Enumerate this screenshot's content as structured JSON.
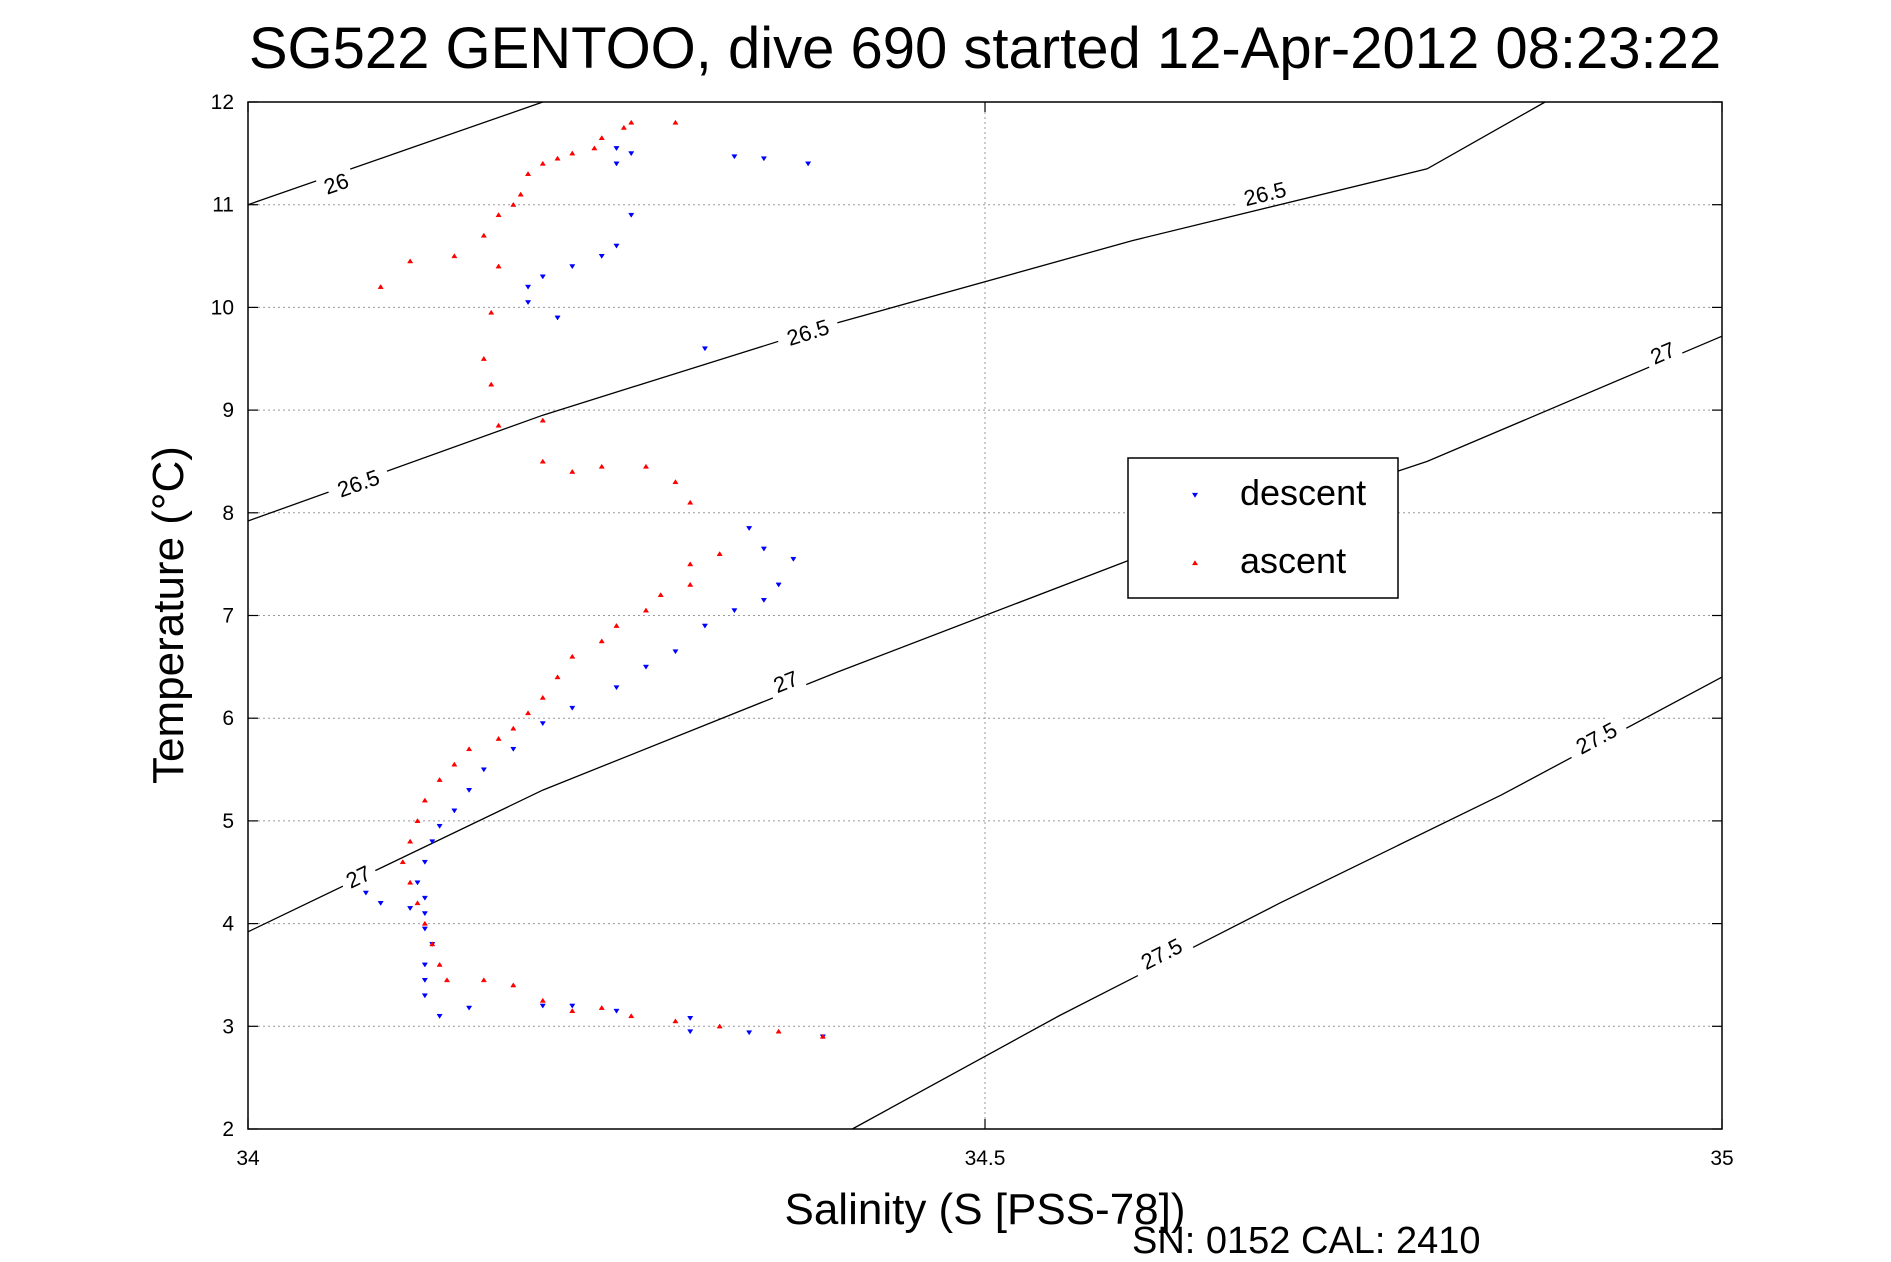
{
  "chart_data": {
    "type": "scatter",
    "title": "SG522 GENTOO, dive 690 started 12-Apr-2012 08:23:22",
    "xlabel": "Salinity (S [PSS-78])",
    "ylabel": "Temperature (°C)",
    "xlim": [
      34,
      35
    ],
    "ylim": [
      2,
      12
    ],
    "x_ticks": [
      "34",
      "34.5",
      "35"
    ],
    "y_ticks": [
      "2",
      "3",
      "4",
      "5",
      "6",
      "7",
      "8",
      "9",
      "10",
      "11",
      "12"
    ],
    "grid": true,
    "legend_position": "center-right",
    "footer": "SN: 0152  CAL: 2410",
    "series": [
      {
        "name": "descent",
        "color": "#0000ff",
        "marker": "triangle-down",
        "points": [
          [
            34.25,
            11.55
          ],
          [
            34.26,
            11.5
          ],
          [
            34.25,
            11.4
          ],
          [
            34.33,
            11.47
          ],
          [
            34.35,
            11.45
          ],
          [
            34.38,
            11.4
          ],
          [
            34.26,
            10.9
          ],
          [
            34.25,
            10.6
          ],
          [
            34.24,
            10.5
          ],
          [
            34.22,
            10.4
          ],
          [
            34.2,
            10.3
          ],
          [
            34.19,
            10.2
          ],
          [
            34.19,
            10.05
          ],
          [
            34.21,
            9.9
          ],
          [
            34.31,
            9.6
          ],
          [
            34.34,
            7.85
          ],
          [
            34.35,
            7.65
          ],
          [
            34.37,
            7.55
          ],
          [
            34.36,
            7.3
          ],
          [
            34.35,
            7.15
          ],
          [
            34.33,
            7.05
          ],
          [
            34.31,
            6.9
          ],
          [
            34.29,
            6.65
          ],
          [
            34.27,
            6.5
          ],
          [
            34.25,
            6.3
          ],
          [
            34.22,
            6.1
          ],
          [
            34.2,
            5.95
          ],
          [
            34.18,
            5.7
          ],
          [
            34.16,
            5.5
          ],
          [
            34.15,
            5.3
          ],
          [
            34.14,
            5.1
          ],
          [
            34.13,
            4.95
          ],
          [
            34.125,
            4.8
          ],
          [
            34.12,
            4.6
          ],
          [
            34.115,
            4.4
          ],
          [
            34.12,
            4.25
          ],
          [
            34.11,
            4.15
          ],
          [
            34.08,
            4.3
          ],
          [
            34.09,
            4.2
          ],
          [
            34.12,
            4.1
          ],
          [
            34.12,
            3.95
          ],
          [
            34.125,
            3.8
          ],
          [
            34.12,
            3.6
          ],
          [
            34.12,
            3.45
          ],
          [
            34.12,
            3.3
          ],
          [
            34.13,
            3.1
          ],
          [
            34.15,
            3.18
          ],
          [
            34.2,
            3.2
          ],
          [
            34.22,
            3.2
          ],
          [
            34.25,
            3.15
          ],
          [
            34.3,
            3.08
          ],
          [
            34.3,
            2.95
          ],
          [
            34.34,
            2.94
          ],
          [
            34.39,
            2.9
          ]
        ]
      },
      {
        "name": "ascent",
        "color": "#ff0000",
        "marker": "triangle-up",
        "points": [
          [
            34.26,
            11.8
          ],
          [
            34.255,
            11.75
          ],
          [
            34.29,
            11.8
          ],
          [
            34.24,
            11.65
          ],
          [
            34.235,
            11.55
          ],
          [
            34.22,
            11.5
          ],
          [
            34.21,
            11.45
          ],
          [
            34.2,
            11.4
          ],
          [
            34.19,
            11.3
          ],
          [
            34.185,
            11.1
          ],
          [
            34.18,
            11.0
          ],
          [
            34.17,
            10.9
          ],
          [
            34.16,
            10.7
          ],
          [
            34.14,
            10.5
          ],
          [
            34.11,
            10.45
          ],
          [
            34.09,
            10.2
          ],
          [
            34.17,
            10.4
          ],
          [
            34.165,
            9.95
          ],
          [
            34.16,
            9.5
          ],
          [
            34.165,
            9.25
          ],
          [
            34.17,
            8.85
          ],
          [
            34.2,
            8.9
          ],
          [
            34.2,
            8.5
          ],
          [
            34.22,
            8.4
          ],
          [
            34.24,
            8.45
          ],
          [
            34.27,
            8.45
          ],
          [
            34.29,
            8.3
          ],
          [
            34.3,
            8.1
          ],
          [
            34.32,
            7.6
          ],
          [
            34.3,
            7.5
          ],
          [
            34.3,
            7.3
          ],
          [
            34.28,
            7.2
          ],
          [
            34.27,
            7.05
          ],
          [
            34.25,
            6.9
          ],
          [
            34.24,
            6.75
          ],
          [
            34.22,
            6.6
          ],
          [
            34.21,
            6.4
          ],
          [
            34.2,
            6.2
          ],
          [
            34.19,
            6.05
          ],
          [
            34.18,
            5.9
          ],
          [
            34.17,
            5.8
          ],
          [
            34.15,
            5.7
          ],
          [
            34.14,
            5.55
          ],
          [
            34.13,
            5.4
          ],
          [
            34.12,
            5.2
          ],
          [
            34.115,
            5.0
          ],
          [
            34.11,
            4.8
          ],
          [
            34.105,
            4.6
          ],
          [
            34.11,
            4.4
          ],
          [
            34.115,
            4.2
          ],
          [
            34.12,
            4.0
          ],
          [
            34.125,
            3.8
          ],
          [
            34.13,
            3.6
          ],
          [
            34.135,
            3.45
          ],
          [
            34.16,
            3.45
          ],
          [
            34.18,
            3.4
          ],
          [
            34.2,
            3.25
          ],
          [
            34.22,
            3.15
          ],
          [
            34.24,
            3.18
          ],
          [
            34.26,
            3.1
          ],
          [
            34.29,
            3.05
          ],
          [
            34.32,
            3.0
          ],
          [
            34.36,
            2.95
          ],
          [
            34.39,
            2.9
          ]
        ]
      }
    ],
    "contours": [
      {
        "level": "26",
        "points": [
          [
            34,
            11.0
          ],
          [
            34.1,
            11.5
          ],
          [
            34.2,
            12.0
          ]
        ],
        "labels": [
          {
            "text": "26",
            "x": 34.06,
            "y": 11.2
          }
        ]
      },
      {
        "level": "26.5",
        "points": [
          [
            34,
            7.92
          ],
          [
            34.2,
            8.95
          ],
          [
            34.4,
            9.85
          ],
          [
            34.6,
            10.65
          ],
          [
            34.8,
            11.35
          ],
          [
            34.88,
            12.0
          ]
        ],
        "labels": [
          {
            "text": "26.5",
            "x": 34.075,
            "y": 8.28
          },
          {
            "text": "26.5",
            "x": 34.38,
            "y": 9.75
          },
          {
            "text": "26.5",
            "x": 34.69,
            "y": 11.1
          }
        ]
      },
      {
        "level": "27",
        "points": [
          [
            34,
            3.92
          ],
          [
            34.2,
            5.3
          ],
          [
            34.4,
            6.45
          ],
          [
            34.6,
            7.55
          ],
          [
            34.8,
            8.5
          ],
          [
            35,
            9.72
          ]
        ],
        "labels": [
          {
            "text": "27",
            "x": 34.075,
            "y": 4.45
          },
          {
            "text": "27",
            "x": 34.365,
            "y": 6.35
          },
          {
            "text": "27",
            "x": 34.96,
            "y": 9.55
          }
        ]
      },
      {
        "level": "27.5",
        "points": [
          [
            34.41,
            2.0
          ],
          [
            34.55,
            3.1
          ],
          [
            34.7,
            4.2
          ],
          [
            34.85,
            5.25
          ],
          [
            35,
            6.4
          ]
        ],
        "labels": [
          {
            "text": "27.5",
            "x": 34.62,
            "y": 3.7
          },
          {
            "text": "27.5",
            "x": 34.915,
            "y": 5.8
          }
        ]
      }
    ]
  }
}
